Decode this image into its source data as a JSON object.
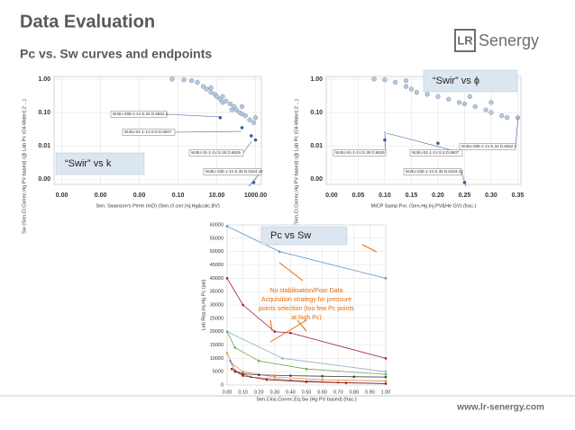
{
  "header": {
    "title": "Data Evaluation",
    "subtitle": "Pc vs. Sw curves and endpoints",
    "logo_mark": "LR",
    "logo_text": "Senergy"
  },
  "footer": {
    "url": "www.lr-senergy.com"
  },
  "chart_data": [
    {
      "type": "scatter",
      "xscale": "log",
      "yscale": "log",
      "grid": true,
      "color": "#b9c8dc",
      "xlabel": "Sen. Swanson's Perm (mD) (Sen.cf.corr.Inj.Hg&calc.BV)",
      "ylabel": "Sw (Sen.Cl.Correc.Hg PV based) (@ Lab Pc (Oil-Water) 2 ...)",
      "callout": "“Swir” vs k",
      "annotations": [
        "W.BU-289-1-1V.S.34 D.6552.1",
        "W.BU-51-1-1V.S.8 D.8507",
        "W.BU-31-1-1V.S.26 D.6525",
        "W.BU-335-1-1V.S.35 D.8184.42"
      ],
      "xlim": [
        4e-08,
        2000
      ],
      "ylim": [
        0.0007,
        1.2
      ],
      "xticks": [
        {
          "value": 1e-07,
          "label": "0.00"
        },
        {
          "value": 1e-05,
          "label": "0.00"
        },
        {
          "value": 0.001,
          "label": "0.00"
        },
        {
          "value": 0.1,
          "label": "0.10"
        },
        {
          "value": 10,
          "label": "10.00"
        },
        {
          "value": 1000,
          "label": "1000.00"
        }
      ],
      "yticks": [
        {
          "value": 1,
          "label": "1.00"
        },
        {
          "value": 0.1,
          "label": "0.10"
        },
        {
          "value": 0.01,
          "label": "0.01"
        },
        {
          "value": 0.001,
          "label": "0.00"
        }
      ],
      "x": [
        0.05,
        0.2,
        0.5,
        1,
        2,
        3,
        5,
        8,
        10,
        15,
        20,
        30,
        50,
        80,
        100,
        150,
        200,
        300,
        500,
        800,
        5,
        20,
        60,
        200,
        1000,
        15,
        200,
        600,
        1000,
        800
      ],
      "values": [
        1,
        0.95,
        0.9,
        0.8,
        0.6,
        0.5,
        0.4,
        0.35,
        0.3,
        0.25,
        0.2,
        0.22,
        0.18,
        0.15,
        0.12,
        0.1,
        0.09,
        0.08,
        0.06,
        0.05,
        0.55,
        0.3,
        0.12,
        0.15,
        0.07,
        0.07,
        0.035,
        0.02,
        0.015,
        0.0008
      ]
    },
    {
      "type": "scatter",
      "xscale": "linear",
      "yscale": "log",
      "grid": true,
      "color": "#b9c8dc",
      "xlabel": "MICP Samp.Por. (Sen.Hg.Inj.PV&He GV) (frac.)",
      "ylabel": "Sw (Sen.Cl.Correc.Hg PV based) (@ Lab Pc (Oil-Water) 2 ...)",
      "callout": "“Swir” vs ϕ",
      "annotations": [
        "W.BU-51-1-1V.S.39 D.6525",
        "W.BU-51-1-1V.S.8 D.8507",
        "W.BU-289-1-1V.S.34 D.6552.1",
        "W.BU-335-1-1V.S.35 D.8184.42"
      ],
      "xlim": [
        -0.01,
        0.356
      ],
      "ylim": [
        0.0007,
        1.2
      ],
      "xticks": [
        {
          "value": 0,
          "label": "0.00"
        },
        0.05,
        {
          "value": 0.1,
          "label": "0.10"
        },
        0.15,
        {
          "value": 0.2,
          "label": "0.20"
        },
        0.25,
        {
          "value": 0.3,
          "label": "0.30"
        },
        0.35
      ],
      "yticks": [
        {
          "value": 1,
          "label": "1.00"
        },
        {
          "value": 0.1,
          "label": "0.10"
        },
        {
          "value": 0.01,
          "label": "0.01"
        },
        {
          "value": 0.001,
          "label": "0.00"
        }
      ],
      "x": [
        0.08,
        0.1,
        0.12,
        0.14,
        0.15,
        0.16,
        0.18,
        0.2,
        0.22,
        0.24,
        0.25,
        0.27,
        0.29,
        0.3,
        0.32,
        0.33,
        0.14,
        0.2,
        0.26,
        0.3,
        0.35,
        0.1,
        0.2,
        0.25
      ],
      "values": [
        1,
        0.95,
        0.8,
        0.6,
        0.5,
        0.4,
        0.35,
        0.3,
        0.25,
        0.2,
        0.18,
        0.15,
        0.12,
        0.1,
        0.08,
        0.07,
        0.9,
        0.5,
        0.3,
        0.2,
        0.07,
        0.015,
        0.012,
        0.0008
      ]
    },
    {
      "type": "line",
      "xscale": "linear",
      "yscale": "linear",
      "grid": true,
      "xlabel": "Sen.Clos.Correc.Eq.Sw (Hg PV based) (frac.)",
      "ylabel": "Lab Rep.Inj.Hg.Pc (psi)",
      "callout": "Pc vs Sw",
      "annotation_lines": [
        "No stabilisation/Poor Data",
        "Acquisition strategy for pressure",
        "points selection (too few Pc points",
        "at high Pc)"
      ],
      "xlim": [
        0,
        1
      ],
      "ylim": [
        0,
        60000
      ],
      "xticks": [
        {
          "value": 0,
          "label": "0.00"
        },
        {
          "value": 0.1,
          "label": "0.10"
        },
        {
          "value": 0.2,
          "label": "0.20"
        },
        {
          "value": 0.3,
          "label": "0.30"
        },
        {
          "value": 0.4,
          "label": "0.40"
        },
        {
          "value": 0.5,
          "label": "0.50"
        },
        {
          "value": 0.6,
          "label": "0.60"
        },
        {
          "value": 0.7,
          "label": "0.70"
        },
        {
          "value": 0.8,
          "label": "0.80"
        },
        {
          "value": 0.9,
          "label": "0.90"
        },
        {
          "value": 1,
          "label": "1.00"
        }
      ],
      "yticks": [
        0,
        5000,
        10000,
        15000,
        20000,
        25000,
        30000,
        35000,
        40000,
        45000,
        50000,
        55000,
        60000
      ],
      "series": [
        {
          "color": "#5b8fc7",
          "x": [
            0,
            0.33,
            1
          ],
          "values": [
            59500,
            50000,
            40000
          ]
        },
        {
          "color": "#9e1b3b",
          "x": [
            0,
            0.1,
            0.3,
            0.4,
            1
          ],
          "values": [
            40000,
            30000,
            20000,
            19500,
            10000
          ]
        },
        {
          "color": "#8fb3c9",
          "x": [
            0,
            0.35,
            1
          ],
          "values": [
            20000,
            10000,
            5000
          ]
        },
        {
          "color": "#6aa84f",
          "x": [
            0,
            0.05,
            0.2,
            0.5,
            1
          ],
          "values": [
            20000,
            14000,
            9000,
            6000,
            4000
          ]
        },
        {
          "color": "#e69138",
          "x": [
            0,
            0.03,
            0.1,
            0.3,
            0.6,
            1
          ],
          "values": [
            12000,
            8000,
            5000,
            3000,
            2000,
            1500
          ]
        },
        {
          "color": "#8e7cc3",
          "x": [
            0.02,
            0.05,
            0.15,
            0.4,
            0.7,
            1
          ],
          "values": [
            9000,
            5500,
            3000,
            1800,
            1000,
            600
          ]
        },
        {
          "color": "#3c3c3c",
          "x": [
            0.05,
            0.1,
            0.2,
            0.4,
            0.6,
            0.8,
            1
          ],
          "values": [
            5000,
            4200,
            3800,
            3500,
            3300,
            3100,
            3000
          ]
        },
        {
          "color": "#a61c00",
          "x": [
            0.03,
            0.1,
            0.25,
            0.5,
            0.75,
            1
          ],
          "values": [
            6000,
            3500,
            2000,
            1200,
            800,
            500
          ]
        }
      ]
    }
  ]
}
